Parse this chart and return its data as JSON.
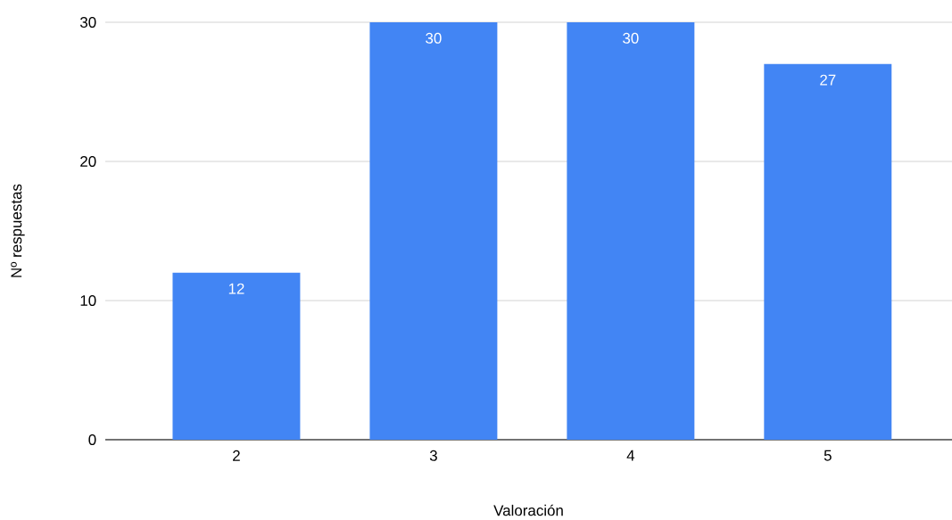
{
  "chart_data": {
    "type": "bar",
    "xlabel": "Valoración",
    "ylabel": "Nº respuestas",
    "categories": [
      "2",
      "3",
      "4",
      "5"
    ],
    "values": [
      12,
      30,
      30,
      27
    ],
    "color": "#4285f4",
    "ylim": [
      0,
      30
    ],
    "yticks": [
      0,
      10,
      20,
      30
    ],
    "grid": "y",
    "data_labels": true
  }
}
